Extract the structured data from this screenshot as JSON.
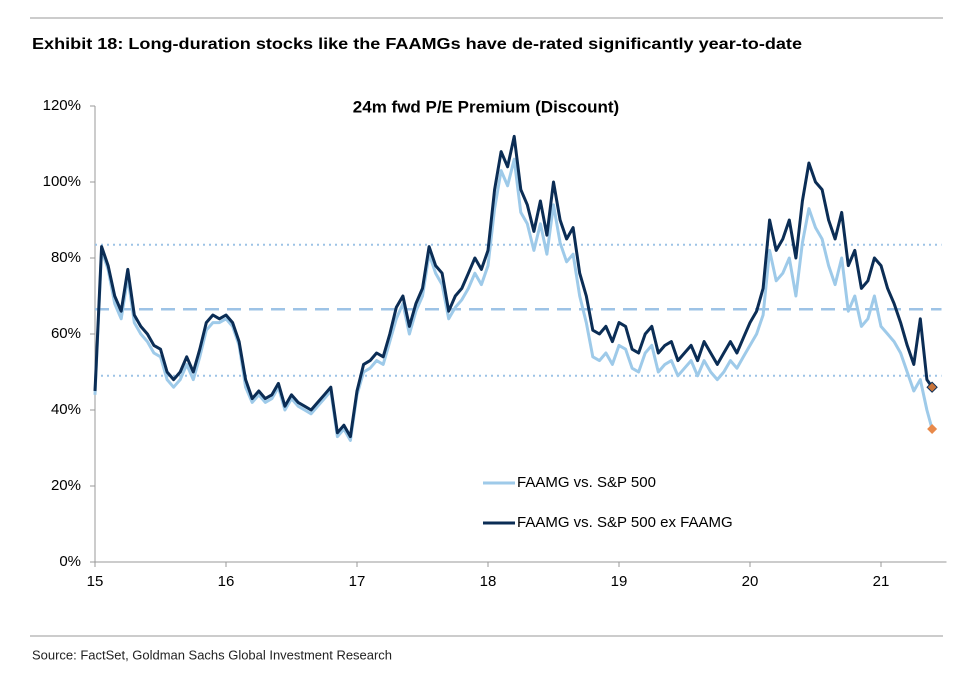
{
  "chart_data": {
    "type": "line",
    "header": "Exhibit 18: Long-duration stocks like the FAAMGs have de-rated significantly year-to-date",
    "title": "24m fwd P/E Premium (Discount)",
    "source": "Source: FactSet, Goldman Sachs Global Investment Research",
    "x": [
      15.0,
      15.05,
      15.1,
      15.15,
      15.2,
      15.25,
      15.3,
      15.35,
      15.4,
      15.45,
      15.5,
      15.55,
      15.6,
      15.65,
      15.7,
      15.75,
      15.8,
      15.85,
      15.9,
      15.95,
      16.0,
      16.05,
      16.1,
      16.15,
      16.2,
      16.25,
      16.3,
      16.35,
      16.4,
      16.45,
      16.5,
      16.55,
      16.6,
      16.65,
      16.7,
      16.75,
      16.8,
      16.85,
      16.9,
      16.95,
      17.0,
      17.05,
      17.1,
      17.15,
      17.2,
      17.25,
      17.3,
      17.35,
      17.4,
      17.45,
      17.5,
      17.55,
      17.6,
      17.65,
      17.7,
      17.75,
      17.8,
      17.85,
      17.9,
      17.95,
      18.0,
      18.05,
      18.1,
      18.15,
      18.2,
      18.25,
      18.3,
      18.35,
      18.4,
      18.45,
      18.5,
      18.55,
      18.6,
      18.65,
      18.7,
      18.75,
      18.8,
      18.85,
      18.9,
      18.95,
      19.0,
      19.05,
      19.1,
      19.15,
      19.2,
      19.25,
      19.3,
      19.35,
      19.4,
      19.45,
      19.5,
      19.55,
      19.6,
      19.65,
      19.7,
      19.75,
      19.8,
      19.85,
      19.9,
      19.95,
      20.0,
      20.05,
      20.1,
      20.15,
      20.2,
      20.25,
      20.3,
      20.35,
      20.4,
      20.45,
      20.5,
      20.55,
      20.6,
      20.65,
      20.7,
      20.75,
      20.8,
      20.85,
      20.9,
      20.95,
      21.0,
      21.05,
      21.1,
      21.15,
      21.2,
      21.25,
      21.3,
      21.35,
      21.39
    ],
    "series": [
      {
        "name": "FAAMG vs. S&P 500",
        "color": "#9ecae9",
        "marker_color": "#e8894a",
        "values": [
          44,
          82,
          77,
          68,
          64,
          75,
          63,
          60,
          58,
          55,
          54,
          48,
          46,
          48,
          52,
          48,
          54,
          61,
          63,
          63,
          64,
          62,
          57,
          46,
          42,
          44,
          42,
          43,
          46,
          40,
          43,
          41,
          40,
          39,
          41,
          43,
          45,
          33,
          35,
          32,
          44,
          50,
          51,
          53,
          52,
          58,
          64,
          68,
          60,
          66,
          70,
          81,
          76,
          73,
          64,
          67,
          69,
          72,
          76,
          73,
          78,
          93,
          103,
          99,
          106,
          92,
          89,
          82,
          89,
          81,
          94,
          84,
          79,
          81,
          70,
          63,
          54,
          53,
          55,
          52,
          57,
          56,
          51,
          50,
          55,
          57,
          50,
          52,
          53,
          49,
          51,
          53,
          49,
          53,
          50,
          48,
          50,
          53,
          51,
          54,
          57,
          60,
          65,
          82,
          74,
          76,
          80,
          70,
          84,
          93,
          88,
          85,
          78,
          73,
          80,
          66,
          70,
          62,
          64,
          70,
          62,
          60,
          58,
          55,
          50,
          45,
          48,
          40,
          35
        ]
      },
      {
        "name": "FAAMG vs. S&P 500 ex FAAMG",
        "color": "#0b2d55",
        "marker_color": "#c8743a",
        "values": [
          45,
          83,
          78,
          70,
          66,
          77,
          65,
          62,
          60,
          57,
          56,
          50,
          48,
          50,
          54,
          50,
          56,
          63,
          65,
          64,
          65,
          63,
          58,
          48,
          43,
          45,
          43,
          44,
          47,
          41,
          44,
          42,
          41,
          40,
          42,
          44,
          46,
          34,
          36,
          33,
          45,
          52,
          53,
          55,
          54,
          60,
          67,
          70,
          62,
          68,
          72,
          83,
          78,
          76,
          66,
          70,
          72,
          76,
          80,
          77,
          82,
          98,
          108,
          104,
          112,
          98,
          94,
          87,
          95,
          86,
          100,
          90,
          85,
          88,
          76,
          70,
          61,
          60,
          62,
          58,
          63,
          62,
          56,
          55,
          60,
          62,
          55,
          57,
          58,
          53,
          55,
          57,
          53,
          58,
          55,
          52,
          55,
          58,
          55,
          59,
          63,
          66,
          72,
          90,
          82,
          85,
          90,
          80,
          95,
          105,
          100,
          98,
          90,
          85,
          92,
          78,
          82,
          72,
          74,
          80,
          78,
          72,
          68,
          63,
          57,
          52,
          64,
          48,
          46
        ]
      }
    ],
    "reference_lines": [
      {
        "value": 83.5,
        "style": "dotted"
      },
      {
        "value": 66.5,
        "style": "dashed"
      },
      {
        "value": 49,
        "style": "dotted"
      }
    ],
    "reference_color": "#9dc3e6",
    "xlim": [
      15,
      21.5
    ],
    "xticks": [
      15,
      16,
      17,
      18,
      19,
      20,
      21
    ],
    "ylim": [
      0,
      120
    ],
    "yticks": [
      {
        "value": 0,
        "label": "0%"
      },
      {
        "value": 20,
        "label": "20%"
      },
      {
        "value": 40,
        "label": "40%"
      },
      {
        "value": 60,
        "label": "60%"
      },
      {
        "value": 80,
        "label": "80%"
      },
      {
        "value": 100,
        "label": "100%"
      },
      {
        "value": 120,
        "label": "120%"
      }
    ],
    "legend": "lower center"
  }
}
